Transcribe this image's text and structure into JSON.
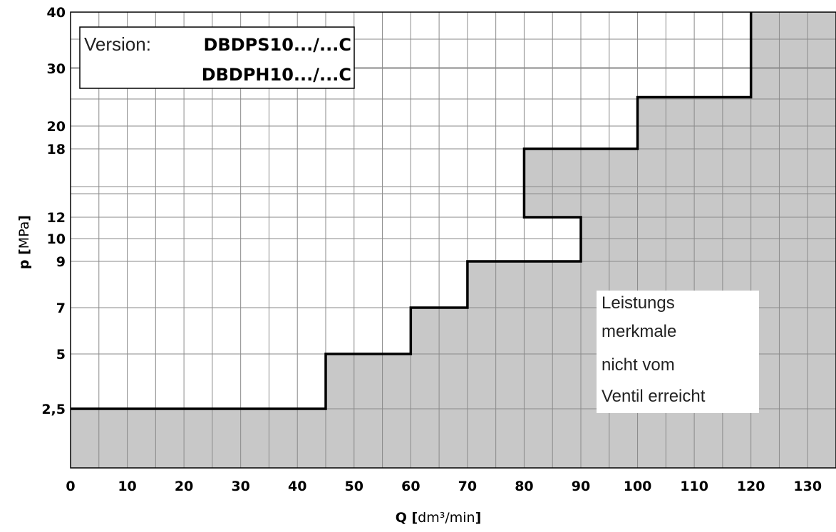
{
  "chart_data": {
    "type": "area",
    "xlabel": "Q [dm³/min]",
    "xlabel_main": "Q [",
    "xlabel_unit": "dm³/min",
    "xlabel_close": "]",
    "ylabel": "p [MPa]",
    "ylabel_main": "p [",
    "ylabel_unit": "MPa",
    "ylabel_close": "]",
    "xlim": [
      0,
      135
    ],
    "x_ticks": [
      "0",
      "10",
      "20",
      "30",
      "40",
      "50",
      "60",
      "70",
      "80",
      "90",
      "100",
      "110",
      "120",
      "130"
    ],
    "x_tick_values": [
      0,
      10,
      20,
      30,
      40,
      50,
      60,
      70,
      80,
      90,
      100,
      110,
      120,
      130
    ],
    "y_ticks": [
      "2,5",
      "5",
      "7",
      "9",
      "10",
      "12",
      "18",
      "20",
      "30",
      "40"
    ],
    "y_tick_values": [
      2.5,
      5,
      7,
      9,
      10,
      12,
      18,
      20,
      30,
      40
    ],
    "grid": true,
    "x_grid_step": 5,
    "boundary": {
      "description_from_image": "stepped performance limit",
      "points": [
        {
          "q": 0,
          "p": 2.5
        },
        {
          "q": 45,
          "p": 2.5
        },
        {
          "q": 45,
          "p": 5
        },
        {
          "q": 60,
          "p": 5
        },
        {
          "q": 60,
          "p": 7
        },
        {
          "q": 70,
          "p": 7
        },
        {
          "q": 70,
          "p": 9
        },
        {
          "q": 90,
          "p": 9
        },
        {
          "q": 90,
          "p": 12
        },
        {
          "q": 80,
          "p": 12
        },
        {
          "q": 80,
          "p": 18
        },
        {
          "q": 100,
          "p": 18
        },
        {
          "q": 100,
          "p": 25
        },
        {
          "q": 120,
          "p": 25
        },
        {
          "q": 120,
          "p": 40
        }
      ]
    },
    "version": {
      "prefix": "Version:",
      "models": [
        "DBDPS10.../...C",
        "DBDPH10.../...C"
      ]
    },
    "annotation": [
      "Leistungs",
      "merkmale",
      "nicht vom",
      "Ventil erreicht"
    ]
  },
  "colors": {
    "shaded_region": "#c8c8c8",
    "grid": "#8a8a8a",
    "boundary": "#000000",
    "background": "#ffffff"
  }
}
